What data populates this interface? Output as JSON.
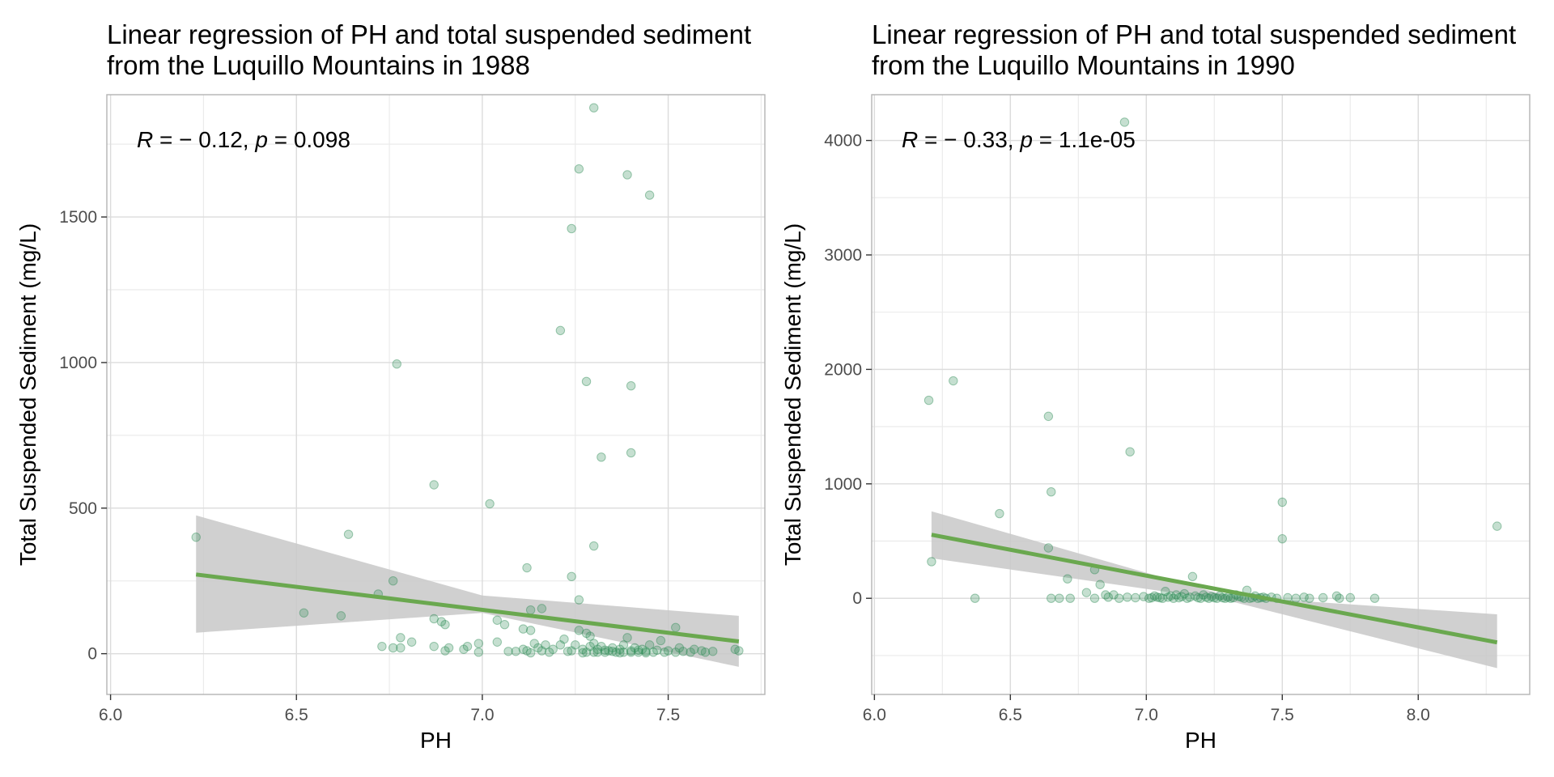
{
  "chart_data": [
    {
      "type": "scatter",
      "title": "Linear regression of PH and total suspended sediment\nfrom the Luquillo Mountains in 1988",
      "xlabel": "PH",
      "ylabel": "Total Suspended Sediment (mg/L)",
      "annotation": {
        "R": "− 0.12",
        "p": "0.098"
      },
      "xlim": [
        5.99,
        7.76
      ],
      "ylim": [
        -140,
        1920
      ],
      "xticks": [
        6.0,
        6.5,
        7.0,
        7.5
      ],
      "xtick_labels": [
        "6.0",
        "6.5",
        "7.0",
        "7.5"
      ],
      "yticks": [
        0,
        500,
        1000,
        1500
      ],
      "ytick_labels": [
        "0",
        "500",
        "1000",
        "1500"
      ],
      "grid": true,
      "point_color": "#2e8b57",
      "line_color": "#6aa84f",
      "band_color": "#c8c8c8",
      "regression": {
        "x": [
          6.23,
          7.69
        ],
        "y": [
          272,
          42
        ]
      },
      "confidence_band": {
        "x": [
          6.23,
          7.0,
          7.69
        ],
        "upper": [
          475,
          200,
          130
        ],
        "lower": [
          72,
          140,
          -45
        ]
      },
      "points": [
        [
          6.23,
          400
        ],
        [
          6.52,
          140
        ],
        [
          6.62,
          130
        ],
        [
          6.64,
          410
        ],
        [
          6.72,
          205
        ],
        [
          6.76,
          250
        ],
        [
          6.77,
          995
        ],
        [
          6.87,
          580
        ],
        [
          6.87,
          120
        ],
        [
          6.89,
          110
        ],
        [
          6.9,
          100
        ],
        [
          7.02,
          515
        ],
        [
          7.04,
          115
        ],
        [
          7.06,
          100
        ],
        [
          7.12,
          295
        ],
        [
          7.13,
          150
        ],
        [
          7.16,
          155
        ],
        [
          7.13,
          80
        ],
        [
          7.11,
          85
        ],
        [
          7.21,
          1110
        ],
        [
          7.24,
          1460
        ],
        [
          7.24,
          265
        ],
        [
          7.26,
          1665
        ],
        [
          7.26,
          185
        ],
        [
          7.28,
          935
        ],
        [
          7.3,
          1875
        ],
        [
          7.3,
          370
        ],
        [
          7.32,
          675
        ],
        [
          7.39,
          1645
        ],
        [
          7.4,
          920
        ],
        [
          7.4,
          690
        ],
        [
          7.45,
          1575
        ],
        [
          7.52,
          90
        ],
        [
          6.73,
          25
        ],
        [
          6.76,
          20
        ],
        [
          6.78,
          55
        ],
        [
          6.78,
          20
        ],
        [
          6.81,
          40
        ],
        [
          6.87,
          25
        ],
        [
          6.9,
          10
        ],
        [
          6.91,
          20
        ],
        [
          6.95,
          15
        ],
        [
          6.96,
          25
        ],
        [
          6.99,
          35
        ],
        [
          6.99,
          5
        ],
        [
          7.04,
          40
        ],
        [
          7.07,
          8
        ],
        [
          7.09,
          8
        ],
        [
          7.11,
          15
        ],
        [
          7.12,
          10
        ],
        [
          7.14,
          35
        ],
        [
          7.15,
          20
        ],
        [
          7.16,
          10
        ],
        [
          7.17,
          30
        ],
        [
          7.19,
          15
        ],
        [
          7.21,
          30
        ],
        [
          7.22,
          50
        ],
        [
          7.24,
          10
        ],
        [
          7.25,
          30
        ],
        [
          7.26,
          80
        ],
        [
          7.27,
          15
        ],
        [
          7.28,
          70
        ],
        [
          7.28,
          5
        ],
        [
          7.29,
          25
        ],
        [
          7.29,
          60
        ],
        [
          7.3,
          5
        ],
        [
          7.3,
          35
        ],
        [
          7.31,
          15
        ],
        [
          7.32,
          25
        ],
        [
          7.33,
          5
        ],
        [
          7.34,
          10
        ],
        [
          7.35,
          20
        ],
        [
          7.36,
          5
        ],
        [
          7.37,
          15
        ],
        [
          7.38,
          30
        ],
        [
          7.38,
          5
        ],
        [
          7.39,
          55
        ],
        [
          7.4,
          10
        ],
        [
          7.4,
          5
        ],
        [
          7.41,
          20
        ],
        [
          7.42,
          5
        ],
        [
          7.43,
          15
        ],
        [
          7.44,
          8
        ],
        [
          7.45,
          30
        ],
        [
          7.46,
          5
        ],
        [
          7.47,
          12
        ],
        [
          7.48,
          45
        ],
        [
          7.49,
          5
        ],
        [
          7.5,
          10
        ],
        [
          7.52,
          5
        ],
        [
          7.53,
          20
        ],
        [
          7.54,
          8
        ],
        [
          7.56,
          5
        ],
        [
          7.57,
          15
        ],
        [
          7.59,
          10
        ],
        [
          7.6,
          5
        ],
        [
          7.62,
          8
        ],
        [
          7.68,
          15
        ],
        [
          7.69,
          10
        ],
        [
          7.31,
          5
        ],
        [
          7.33,
          12
        ],
        [
          7.35,
          8
        ],
        [
          7.37,
          3
        ],
        [
          7.42,
          12
        ],
        [
          7.44,
          3
        ],
        [
          7.27,
          3
        ],
        [
          7.23,
          8
        ],
        [
          7.18,
          5
        ],
        [
          7.13,
          3
        ]
      ]
    },
    {
      "type": "scatter",
      "title": "Linear regression of PH and total suspended sediment\nfrom the Luquillo Mountains in 1990",
      "xlabel": "PH",
      "ylabel": "Total Suspended Sediment (mg/L)",
      "annotation": {
        "R": "− 0.33",
        "p": "1.1e-05"
      },
      "xlim": [
        5.99,
        8.41
      ],
      "ylim": [
        -840,
        4400
      ],
      "xticks": [
        6.0,
        6.5,
        7.0,
        7.5,
        8.0
      ],
      "xtick_labels": [
        "6.0",
        "6.5",
        "7.0",
        "7.5",
        "8.0"
      ],
      "yticks": [
        0,
        1000,
        2000,
        3000,
        4000
      ],
      "ytick_labels": [
        "0",
        "1000",
        "2000",
        "3000",
        "4000"
      ],
      "grid": true,
      "point_color": "#2e8b57",
      "line_color": "#6aa84f",
      "band_color": "#c8c8c8",
      "regression": {
        "x": [
          6.21,
          8.29
        ],
        "y": [
          555,
          -385
        ]
      },
      "confidence_band": {
        "x": [
          6.21,
          7.3,
          8.29
        ],
        "upper": [
          760,
          20,
          -140
        ],
        "lower": [
          350,
          -20,
          -610
        ]
      },
      "points": [
        [
          6.2,
          1730
        ],
        [
          6.21,
          320
        ],
        [
          6.29,
          1900
        ],
        [
          6.37,
          0
        ],
        [
          6.46,
          740
        ],
        [
          6.64,
          1590
        ],
        [
          6.65,
          930
        ],
        [
          6.64,
          440
        ],
        [
          6.65,
          0
        ],
        [
          6.68,
          0
        ],
        [
          6.71,
          170
        ],
        [
          6.72,
          0
        ],
        [
          6.78,
          50
        ],
        [
          6.81,
          250
        ],
        [
          6.83,
          120
        ],
        [
          6.85,
          30
        ],
        [
          6.92,
          4160
        ],
        [
          6.94,
          1280
        ],
        [
          7.5,
          840
        ],
        [
          7.5,
          520
        ],
        [
          8.29,
          630
        ],
        [
          6.81,
          0
        ],
        [
          6.86,
          10
        ],
        [
          6.88,
          30
        ],
        [
          6.9,
          0
        ],
        [
          6.93,
          10
        ],
        [
          6.96,
          5
        ],
        [
          6.99,
          15
        ],
        [
          7.01,
          0
        ],
        [
          7.03,
          20
        ],
        [
          7.05,
          5
        ],
        [
          7.07,
          60
        ],
        [
          7.08,
          10
        ],
        [
          7.09,
          20
        ],
        [
          7.1,
          0
        ],
        [
          7.11,
          30
        ],
        [
          7.12,
          5
        ],
        [
          7.13,
          15
        ],
        [
          7.14,
          40
        ],
        [
          7.15,
          0
        ],
        [
          7.16,
          10
        ],
        [
          7.17,
          190
        ],
        [
          7.18,
          20
        ],
        [
          7.19,
          5
        ],
        [
          7.2,
          0
        ],
        [
          7.21,
          30
        ],
        [
          7.22,
          10
        ],
        [
          7.23,
          0
        ],
        [
          7.24,
          15
        ],
        [
          7.25,
          5
        ],
        [
          7.26,
          0
        ],
        [
          7.27,
          20
        ],
        [
          7.28,
          5
        ],
        [
          7.29,
          0
        ],
        [
          7.3,
          10
        ],
        [
          7.31,
          0
        ],
        [
          7.32,
          5
        ],
        [
          7.33,
          30
        ],
        [
          7.35,
          10
        ],
        [
          7.37,
          70
        ],
        [
          7.38,
          0
        ],
        [
          7.4,
          20
        ],
        [
          7.42,
          5
        ],
        [
          7.44,
          0
        ],
        [
          7.46,
          10
        ],
        [
          7.48,
          0
        ],
        [
          7.52,
          5
        ],
        [
          7.55,
          0
        ],
        [
          7.58,
          10
        ],
        [
          7.6,
          0
        ],
        [
          7.65,
          5
        ],
        [
          7.7,
          20
        ],
        [
          7.71,
          0
        ],
        [
          7.75,
          5
        ],
        [
          7.84,
          0
        ],
        [
          7.36,
          0
        ],
        [
          7.34,
          15
        ],
        [
          7.39,
          5
        ],
        [
          7.41,
          0
        ],
        [
          7.43,
          10
        ],
        [
          7.06,
          0
        ],
        [
          7.04,
          10
        ],
        [
          7.02,
          5
        ]
      ]
    }
  ]
}
